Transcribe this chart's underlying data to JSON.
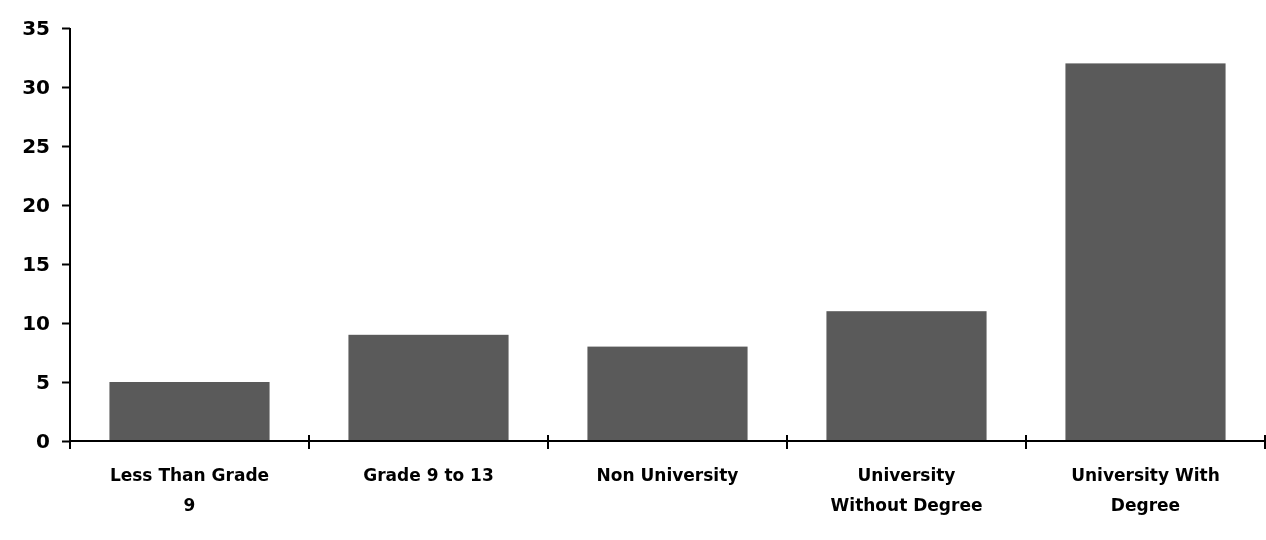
{
  "chart_data": {
    "type": "bar",
    "categories": [
      "Less Than Grade 9",
      "Grade 9 to 13",
      "Non University",
      "University Without Degree",
      "University With Degree"
    ],
    "values": [
      5,
      9,
      8,
      11,
      32
    ],
    "color": "#5a5a5a",
    "ylim": [
      0,
      35
    ],
    "yticks": [
      0,
      5,
      10,
      15,
      20,
      25,
      30,
      35
    ],
    "grid": false
  }
}
